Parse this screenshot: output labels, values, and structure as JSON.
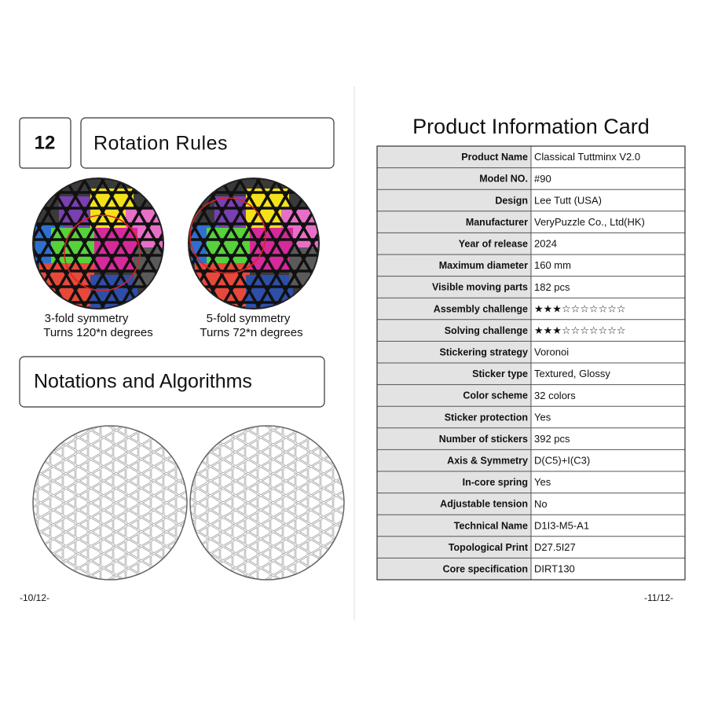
{
  "left_page": {
    "section_number": "12",
    "section_title": "Rotation Rules",
    "rotation_rules": [
      {
        "symmetry": "3-fold symmetry",
        "turns": "Turns 120*n degrees"
      },
      {
        "symmetry": "5-fold symmetry",
        "turns": "Turns 72*n degrees"
      }
    ],
    "notations_title": "Notations and Algorithms",
    "page_number": "-10/12-"
  },
  "right_page": {
    "title": "Product Information Card",
    "table": {
      "rows": [
        [
          "Product Name",
          "Classical Tuttminx V2.0"
        ],
        [
          "Model NO.",
          "#90"
        ],
        [
          "Design",
          "Lee Tutt (USA)"
        ],
        [
          "Manufacturer",
          "VeryPuzzle Co., Ltd(HK)"
        ],
        [
          "Year of release",
          "2024"
        ],
        [
          "Maximum diameter",
          "160 mm"
        ],
        [
          "Visible moving parts",
          "182 pcs"
        ],
        [
          "Assembly challenge",
          "★★★☆☆☆☆☆☆☆"
        ],
        [
          "Solving challenge",
          "★★★☆☆☆☆☆☆☆"
        ],
        [
          "Stickering strategy",
          "Voronoi"
        ],
        [
          "Sticker type",
          "Textured, Glossy"
        ],
        [
          "Color scheme",
          "32 colors"
        ],
        [
          "Sticker protection",
          "Yes"
        ],
        [
          "Number of stickers",
          "392 pcs"
        ],
        [
          "Axis & Symmetry",
          "D(C5)+I(C3)"
        ],
        [
          "In-core spring",
          "Yes"
        ],
        [
          "Adjustable tension",
          "No"
        ],
        [
          "Technical Name",
          "D1I3-M5-A1"
        ],
        [
          "Topological Print",
          "D27.5I27"
        ],
        [
          "Core specification",
          "DIRT130"
        ]
      ]
    },
    "page_number": "-11/12-"
  }
}
